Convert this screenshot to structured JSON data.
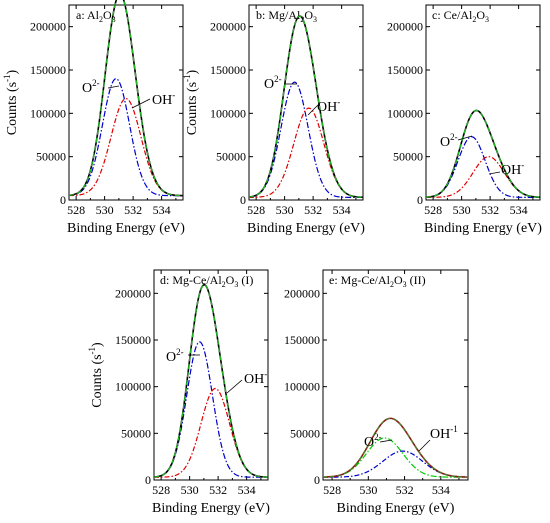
{
  "chart_data": [
    {
      "type": "line",
      "panel_label": "a: Al",
      "sub": "2",
      "tail": "O",
      "sub2": "3",
      "tail2": "",
      "xlabel": "Binding Energy (eV)",
      "ylabel": "Counts (s",
      "ylabel_sup": "-1",
      "ylabel_tail": ")",
      "xlim": [
        527.5,
        535.5
      ],
      "ylim": [
        0,
        225000
      ],
      "xticks": [
        528,
        530,
        532,
        534
      ],
      "yticks": [
        0,
        50000,
        100000,
        150000,
        200000
      ],
      "ytick_labels": [
        "0",
        "50000",
        "100000",
        "150000",
        "200000"
      ],
      "baseline": 5000,
      "series": [
        {
          "center": 530.8,
          "height": 135000,
          "sigma": 0.95,
          "color": "#0000cc",
          "dash": "6,2,1.5,2"
        },
        {
          "center": 531.5,
          "height": 112000,
          "sigma": 1.05,
          "color": "#dd0000",
          "dash": "5,2,1.5,2"
        }
      ],
      "annotations": [
        {
          "text": "O",
          "sup": "2-"
        },
        {
          "text": "OH",
          "sup": "-"
        }
      ]
    },
    {
      "type": "line",
      "panel_label": "b: Mg/Al",
      "sub": "2",
      "tail": "O",
      "sub2": "3",
      "tail2": "",
      "xlabel": "Binding Energy (eV)",
      "ylabel": "Counts (s",
      "ylabel_sup": "-1",
      "ylabel_tail": ")",
      "xlim": [
        527.5,
        535.5
      ],
      "ylim": [
        0,
        225000
      ],
      "xticks": [
        528,
        530,
        532,
        534
      ],
      "yticks": [
        0,
        50000,
        100000,
        150000,
        200000
      ],
      "ytick_labels": [
        "0",
        "50000",
        "100000",
        "150000",
        "200000"
      ],
      "baseline": 3000,
      "series": [
        {
          "center": 530.7,
          "height": 133000,
          "sigma": 0.95,
          "color": "#0000cc",
          "dash": "6,2,1.5,2"
        },
        {
          "center": 531.7,
          "height": 103000,
          "sigma": 1.05,
          "color": "#dd0000",
          "dash": "5,2,1.5,2"
        }
      ],
      "annotations": [
        {
          "text": "O",
          "sup": "2-"
        },
        {
          "text": "OH",
          "sup": "-"
        }
      ]
    },
    {
      "type": "line",
      "panel_label": "c: Ce/Al",
      "sub": "2",
      "tail": "O",
      "sub2": "3",
      "tail2": "",
      "xlabel": "Binding Energy (eV)",
      "ylabel": "",
      "ylabel_sup": "",
      "ylabel_tail": "",
      "xlim": [
        527.5,
        535.5
      ],
      "ylim": [
        0,
        225000
      ],
      "xticks": [
        528,
        530,
        532,
        534
      ],
      "yticks": [
        0,
        50000,
        100000,
        150000,
        200000
      ],
      "ytick_labels": [
        "0",
        "50000",
        "100000",
        "150000",
        "200000"
      ],
      "baseline": 3000,
      "series": [
        {
          "center": 530.7,
          "height": 70000,
          "sigma": 0.95,
          "color": "#0000cc",
          "dash": "6,2,1.5,2"
        },
        {
          "center": 531.9,
          "height": 47000,
          "sigma": 1.1,
          "color": "#dd0000",
          "dash": "5,2,1.5,2"
        }
      ],
      "annotations": [
        {
          "text": "O",
          "sup": "2-"
        },
        {
          "text": "OH",
          "sup": "-"
        }
      ]
    },
    {
      "type": "line",
      "panel_label": "d: Mg-Ce/Al",
      "sub": "2",
      "tail": "O",
      "sub2": "3",
      "tail2": " (I)",
      "xlabel": "Binding Energy (eV)",
      "ylabel": "Counts (s",
      "ylabel_sup": "-1",
      "ylabel_tail": ")",
      "xlim": [
        527.5,
        535.5
      ],
      "ylim": [
        0,
        225000
      ],
      "xticks": [
        528,
        530,
        532,
        534
      ],
      "yticks": [
        0,
        50000,
        100000,
        150000,
        200000
      ],
      "ytick_labels": [
        "0",
        "50000",
        "100000",
        "150000",
        "200000"
      ],
      "baseline": 3000,
      "series": [
        {
          "center": 530.7,
          "height": 145000,
          "sigma": 0.9,
          "color": "#0000cc",
          "dash": "6,2,1.5,2"
        },
        {
          "center": 531.8,
          "height": 95000,
          "sigma": 1.0,
          "color": "#dd0000",
          "dash": "5,2,1.5,2"
        }
      ],
      "annotations": [
        {
          "text": "O",
          "sup": "2-"
        },
        {
          "text": "OH",
          "sup": "-"
        }
      ]
    },
    {
      "type": "line",
      "panel_label": "e: Mg-Ce/Al",
      "sub": "2",
      "tail": "O",
      "sub2": "3",
      "tail2": " (II)",
      "xlabel": "Binding Energy (eV)",
      "ylabel": "",
      "ylabel_sup": "",
      "ylabel_tail": "",
      "xlim": [
        527.5,
        535.5
      ],
      "ylim": [
        0,
        225000
      ],
      "xticks": [
        528,
        530,
        532,
        534
      ],
      "yticks": [
        0,
        50000,
        100000,
        150000,
        200000
      ],
      "ytick_labels": [
        "0",
        "50000",
        "100000",
        "150000",
        "200000"
      ],
      "baseline": 3000,
      "series": [
        {
          "center": 530.9,
          "height": 42000,
          "sigma": 1.0,
          "color": "#00cc00",
          "dash": "6,2,1.5,2"
        },
        {
          "center": 531.9,
          "height": 28000,
          "sigma": 1.1,
          "color": "#0000cc",
          "dash": "5,2,1.5,2"
        }
      ],
      "annotations": [
        {
          "text": "O",
          "sup": "2-"
        },
        {
          "text": "OH",
          "sup": "-1"
        }
      ]
    }
  ]
}
